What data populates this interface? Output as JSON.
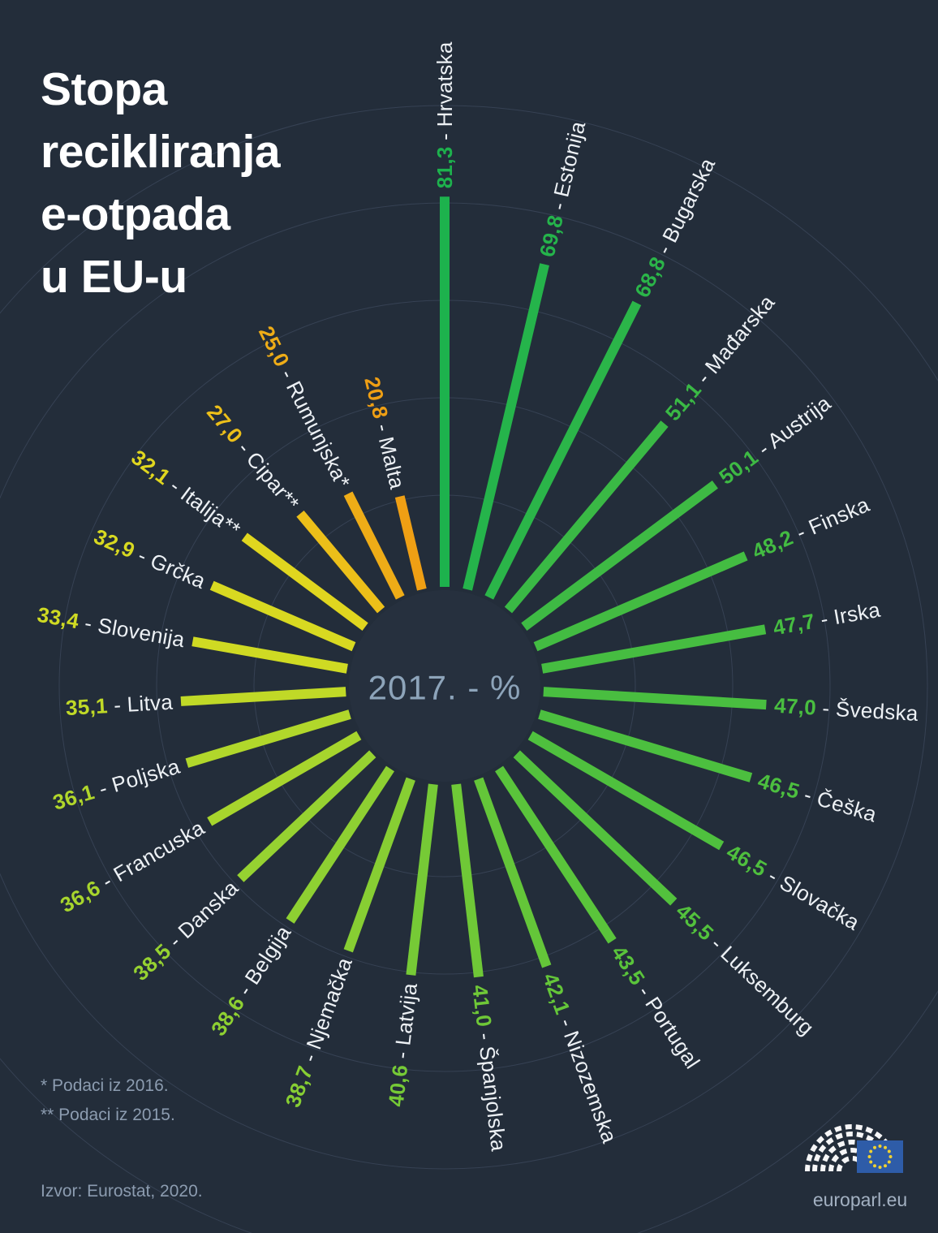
{
  "title": {
    "lines": [
      "Stopa",
      "recikliranja",
      "e-otpada",
      "u EU-u"
    ]
  },
  "chart_data": {
    "type": "radial_bar",
    "title": "Stopa recikliranja e-otpada u EU-u",
    "center_label": "2017. - %",
    "unit": "%",
    "direction": "clockwise",
    "start_angle_deg": 0,
    "rings_percent": [
      20,
      40,
      60,
      80,
      100
    ],
    "categories": [
      "Hrvatska",
      "Estonija",
      "Bugarska",
      "Mađarska",
      "Austrija",
      "Finska",
      "Irska",
      "Švedska",
      "Češka",
      "Slovačka",
      "Luksemburg",
      "Portugal",
      "Nizozemska",
      "Španjolska",
      "Latvija",
      "Njemačka",
      "Belgija",
      "Danska",
      "Francuska",
      "Poljska",
      "Litva",
      "Slovenija",
      "Grčka",
      "Italija**",
      "Cipar**",
      "Rumunjska*",
      "Malta"
    ],
    "values": [
      81.3,
      69.8,
      68.8,
      51.1,
      50.1,
      48.2,
      47.7,
      47.0,
      46.5,
      46.5,
      45.5,
      43.5,
      42.1,
      41.0,
      40.6,
      38.7,
      38.6,
      38.5,
      36.6,
      36.1,
      35.1,
      33.4,
      32.9,
      32.1,
      27.0,
      25.0,
      20.8
    ],
    "value_labels": [
      "81,3",
      "69,8",
      "68,8",
      "51,1",
      "50,1",
      "48,2",
      "47,7",
      "47,0",
      "46,5",
      "46,5",
      "45,5",
      "43,5",
      "42,1",
      "41,0",
      "40,6",
      "38,7",
      "38,6",
      "38,5",
      "36,6",
      "36,1",
      "35,1",
      "33,4",
      "32,9",
      "32,1",
      "27,0",
      "25,0",
      "20,8"
    ],
    "bar_colors": [
      "#1db24d",
      "#25b44b",
      "#2bb549",
      "#3ab945",
      "#3eba44",
      "#43bc42",
      "#46bd41",
      "#49be40",
      "#4cbf3f",
      "#4fc03e",
      "#53c13d",
      "#5ac43b",
      "#64c639",
      "#6fc837",
      "#76ca36",
      "#87ce33",
      "#8ed032",
      "#96d231",
      "#a7d52d",
      "#b1d72b",
      "#c0d927",
      "#cfda23",
      "#d8d921",
      "#e0d61f",
      "#ecbf19",
      "#eeac17",
      "#ef9f14"
    ]
  },
  "footnotes": [
    "* Podaci iz 2016.",
    "** Podaci iz 2015."
  ],
  "source": "Izvor: Eurostat, 2020.",
  "site": "europarl.eu",
  "colors": {
    "background": "#232d3a",
    "gridline": "#4d5a74",
    "label_text": "#edf1f5",
    "center_disc": "#26303e",
    "center_text": "#8da4ba",
    "title_text": "#ffffff",
    "footnote_text": "#8c9cb0",
    "site_text": "#a3b1c2",
    "flag_blue": "#2e5ca8",
    "flag_star": "#f0d132",
    "logo_white": "#ffffff"
  }
}
